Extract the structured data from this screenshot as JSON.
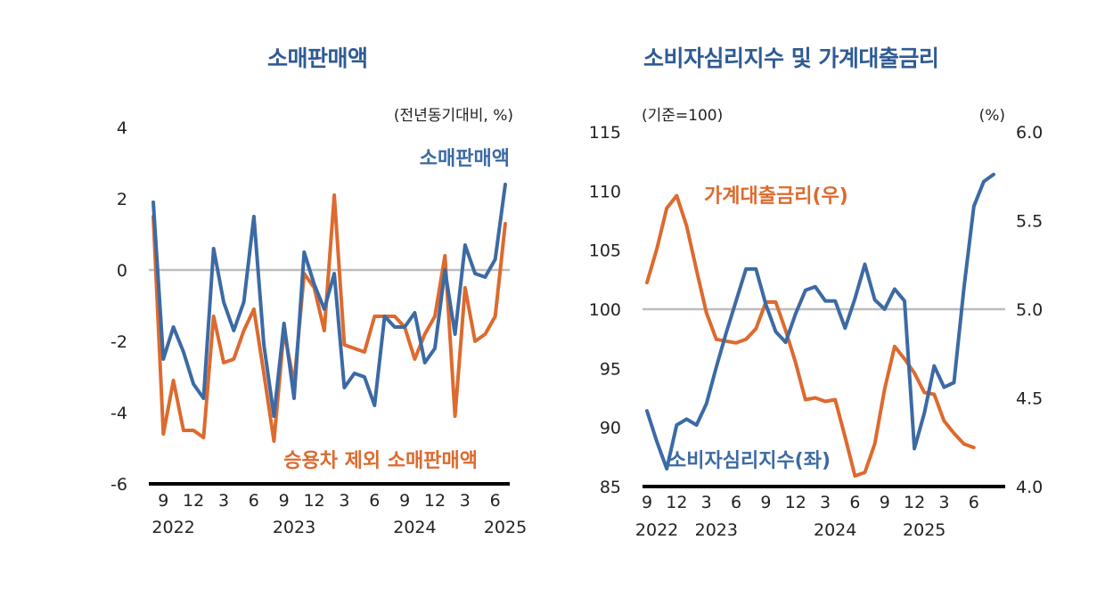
{
  "colors": {
    "blue": "#3c6aa4",
    "orange": "#dd6a2e",
    "zero_line": "#bdbdbd",
    "axis": "#000000",
    "title": "#2f5b94"
  },
  "chart_data": [
    {
      "type": "line",
      "title": "소매판매액",
      "unit_label": "(전년동기대비, %)",
      "ylim": [
        -6,
        4
      ],
      "y_ticks": [
        "4",
        "2",
        "0",
        "-2",
        "-4",
        "-6"
      ],
      "reference_line": 0,
      "x_tick_labels": [
        "9",
        "12",
        "3",
        "6",
        "9",
        "12",
        "3",
        "6",
        "9",
        "12",
        "3",
        "6"
      ],
      "year_labels": [
        "2022",
        "2023",
        "2024",
        "2025"
      ],
      "period": "2022.08 – 2025.07 (monthly)",
      "series": [
        {
          "name": "소매판매액",
          "color": "blue",
          "values": [
            1.9,
            -2.5,
            -1.6,
            -2.3,
            -3.2,
            -3.6,
            0.6,
            -0.9,
            -1.7,
            -0.9,
            1.5,
            -2.1,
            -4.1,
            -1.5,
            -3.6,
            0.5,
            -0.4,
            -1.1,
            -0.1,
            -3.3,
            -2.9,
            -3.0,
            -3.8,
            -1.3,
            -1.6,
            -1.6,
            -1.2,
            -2.6,
            -2.2,
            0.0,
            -1.8,
            0.7,
            -0.1,
            -0.2,
            0.3,
            2.4
          ]
        },
        {
          "name": "승용차 제외 소매판매액",
          "color": "orange",
          "values": [
            1.5,
            -4.6,
            -3.1,
            -4.5,
            -4.5,
            -4.7,
            -1.3,
            -2.6,
            -2.5,
            -1.7,
            -1.1,
            -2.9,
            -4.8,
            -1.7,
            -3.2,
            -0.1,
            -0.5,
            -1.7,
            2.1,
            -2.1,
            -2.2,
            -2.3,
            -1.3,
            -1.3,
            -1.3,
            -1.6,
            -2.5,
            -1.8,
            -1.3,
            0.4,
            -4.1,
            -0.5,
            -2.0,
            -1.8,
            -1.3,
            1.3
          ]
        }
      ]
    },
    {
      "type": "line",
      "title": "소비자심리지수 및 가계대출금리",
      "left_unit_label": "(기준=100)",
      "right_unit_label": "(%)",
      "ylim_left": [
        85,
        115
      ],
      "ylim_right": [
        4.0,
        6.0
      ],
      "y_ticks_left": [
        "115",
        "110",
        "105",
        "100",
        "95",
        "90",
        "85"
      ],
      "y_ticks_right": [
        "6.0",
        "5.5",
        "5.0",
        "4.5",
        "4.0"
      ],
      "reference_line": 100,
      "x_tick_labels": [
        "9",
        "12",
        "3",
        "6",
        "9",
        "12",
        "3",
        "6",
        "9",
        "12",
        "3",
        "6"
      ],
      "year_labels": [
        "2022",
        "2023",
        "2024",
        "2025"
      ],
      "period": "2022.09 – 2025.08 (monthly)",
      "series": [
        {
          "name": "소비자심리지수(좌)",
          "color": "blue",
          "axis": "left",
          "values": [
            91.4,
            88.8,
            86.5,
            90.2,
            90.7,
            90.2,
            92.0,
            95.1,
            98.0,
            100.7,
            103.4,
            103.4,
            100.4,
            98.1,
            97.2,
            99.6,
            101.6,
            101.9,
            100.7,
            100.7,
            98.4,
            100.9,
            103.8,
            100.8,
            100.0,
            101.7,
            100.7,
            88.2,
            91.2,
            95.2,
            93.4,
            93.8,
            101.8,
            108.7,
            110.8,
            111.4
          ]
        },
        {
          "name": "가계대출금리(우)",
          "color": "orange",
          "axis": "right",
          "values": [
            5.15,
            5.34,
            5.57,
            5.64,
            5.47,
            5.22,
            4.98,
            4.83,
            4.82,
            4.81,
            4.83,
            4.89,
            5.04,
            5.04,
            4.88,
            4.7,
            4.49,
            4.5,
            4.48,
            4.49,
            4.28,
            4.06,
            4.08,
            4.24,
            4.55,
            4.79,
            4.72,
            4.64,
            4.53,
            4.52,
            4.37,
            4.3,
            4.24,
            4.22
          ]
        }
      ]
    }
  ]
}
